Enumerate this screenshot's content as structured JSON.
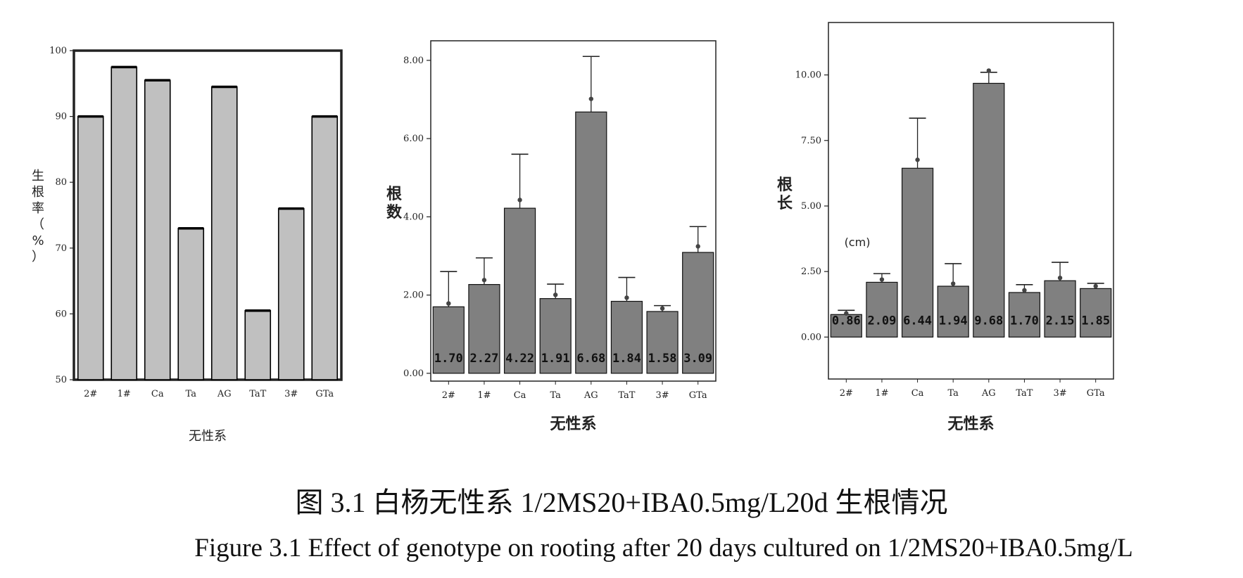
{
  "chart_data": [
    {
      "type": "bar",
      "categories": [
        "2#",
        "1#",
        "Ca",
        "Ta",
        "AG",
        "TaT",
        "3#",
        "GTa"
      ],
      "values": [
        90,
        97.5,
        95.5,
        73,
        94.5,
        60.5,
        76,
        90
      ],
      "ylim": [
        50,
        100
      ],
      "yticks": [
        "50",
        "60",
        "70",
        "80",
        "90",
        "100"
      ],
      "ylabel": "生根率（%）",
      "xlabel": "无性系",
      "grid": false,
      "colors": {
        "bar": "#c0c0c0",
        "edge": "#000000"
      }
    },
    {
      "type": "bar",
      "categories": [
        "2#",
        "1#",
        "Ca",
        "Ta",
        "AG",
        "TaT",
        "3#",
        "GTa"
      ],
      "values": [
        1.7,
        2.27,
        4.22,
        1.91,
        6.68,
        1.84,
        1.58,
        3.09
      ],
      "value_labels": [
        "1.70",
        "2.27",
        "4.22",
        "1.91",
        "6.68",
        "1.84",
        "1.58",
        "3.09"
      ],
      "error_upper": [
        2.6,
        2.95,
        5.6,
        2.28,
        8.1,
        2.45,
        1.73,
        3.75
      ],
      "ylim": [
        -0.2,
        8.5
      ],
      "yticks": [
        "0.00",
        "2.00",
        "4.00",
        "6.00",
        "8.00"
      ],
      "ylabel": "根数",
      "xlabel": "无性系",
      "grid": false,
      "colors": {
        "bar": "#808080",
        "edge": "#111111"
      }
    },
    {
      "type": "bar",
      "categories": [
        "2#",
        "1#",
        "Ca",
        "Ta",
        "AG",
        "TaT",
        "3#",
        "GTa"
      ],
      "values": [
        0.86,
        2.09,
        6.44,
        1.94,
        9.68,
        1.7,
        2.15,
        1.85
      ],
      "value_labels": [
        "0.86",
        "2.09",
        "6.44",
        "1.94",
        "9.68",
        "1.70",
        "2.15",
        "1.85"
      ],
      "error_upper": [
        1.02,
        2.42,
        8.35,
        2.8,
        10.1,
        2.0,
        2.85,
        2.05
      ],
      "ylim": [
        -1.6,
        12.0
      ],
      "yticks": [
        "0.00",
        "2.50",
        "5.00",
        "7.50",
        "10.00"
      ],
      "ylabel": "根长",
      "ylabel_unit": "(cm)",
      "xlabel": "无性系",
      "grid": false,
      "colors": {
        "bar": "#808080",
        "edge": "#111111"
      }
    }
  ],
  "caption_cn": "图 3.1  白杨无性系 1/2MS20+IBA0.5mg/L20d 生根情况",
  "caption_en": "Figure 3.1 Effect of genotype on rooting after 20 days cultured on 1/2MS20+IBA0.5mg/L"
}
